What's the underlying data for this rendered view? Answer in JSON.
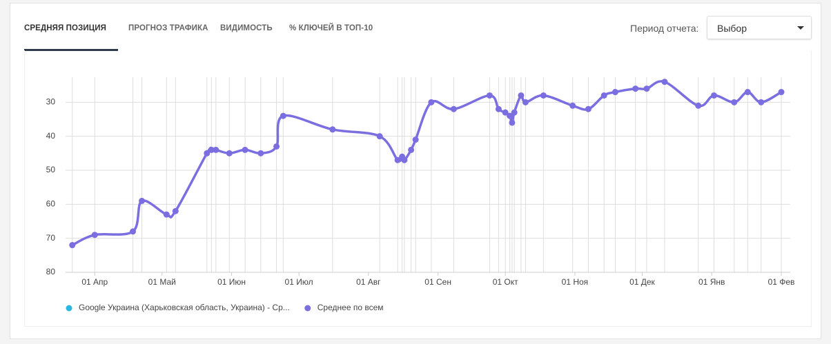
{
  "tabs": [
    "СРЕДНЯЯ ПОЗИЦИЯ",
    "ПРОГНОЗ ТРАФИКА",
    "ВИДИМОСТЬ",
    "% КЛЮЧЕЙ В ТОП-10"
  ],
  "period_label": "Период отчета:",
  "select_value": "Выбор",
  "chart_data": {
    "type": "line",
    "y_inverted": true,
    "grid": true,
    "x": [
      -10,
      0,
      17,
      21,
      32,
      36,
      50,
      52,
      54,
      60,
      67,
      74,
      81,
      84,
      106,
      127,
      135,
      137,
      138,
      141,
      143,
      150,
      160,
      176,
      180,
      183,
      185,
      186,
      187,
      190,
      192,
      200,
      213,
      220,
      227,
      232,
      241,
      246,
      254,
      269,
      276,
      285,
      291,
      297,
      306
    ],
    "xlim": [
      -13,
      310
    ],
    "xticks": [
      {
        "value": 0,
        "label": "01 Апр"
      },
      {
        "value": 30,
        "label": "01 Май"
      },
      {
        "value": 61,
        "label": "01 Июн"
      },
      {
        "value": 91,
        "label": "01 Июл"
      },
      {
        "value": 122,
        "label": "01 Авг"
      },
      {
        "value": 153,
        "label": "01 Сен"
      },
      {
        "value": 183,
        "label": "01 Окт"
      },
      {
        "value": 214,
        "label": "01 Ноя"
      },
      {
        "value": 244,
        "label": "01 Дек"
      },
      {
        "value": 275,
        "label": "01 Янв"
      },
      {
        "value": 306,
        "label": "01 Фев"
      }
    ],
    "ylim": [
      20,
      80
    ],
    "yticks": [
      30,
      40,
      50,
      60,
      70,
      80
    ],
    "series": [
      {
        "name": "Google Украина (Харьковская область, Украина) - Ср...",
        "color": "#29b6e0",
        "values": [
          null,
          null,
          null,
          null,
          null,
          null,
          null,
          null,
          null,
          null,
          null,
          null,
          null,
          null,
          null,
          null,
          null,
          null,
          null,
          null,
          null,
          null,
          null,
          null,
          null,
          null,
          null,
          null,
          null,
          null,
          null,
          null,
          null,
          null,
          null,
          null,
          null,
          null,
          null,
          null,
          null,
          null,
          null,
          null,
          null
        ]
      },
      {
        "name": "Среднее по всем",
        "color": "#7b6ee0",
        "values": [
          72,
          69,
          68,
          59,
          63,
          62,
          45,
          44,
          44,
          45,
          44,
          45,
          43,
          34,
          38,
          40,
          47,
          46,
          47,
          44,
          41,
          30,
          32,
          28,
          32,
          33,
          34,
          36,
          33,
          28,
          30,
          28,
          31,
          32,
          28,
          27,
          26,
          26,
          24,
          31,
          28,
          30,
          27,
          30,
          27
        ]
      }
    ]
  }
}
